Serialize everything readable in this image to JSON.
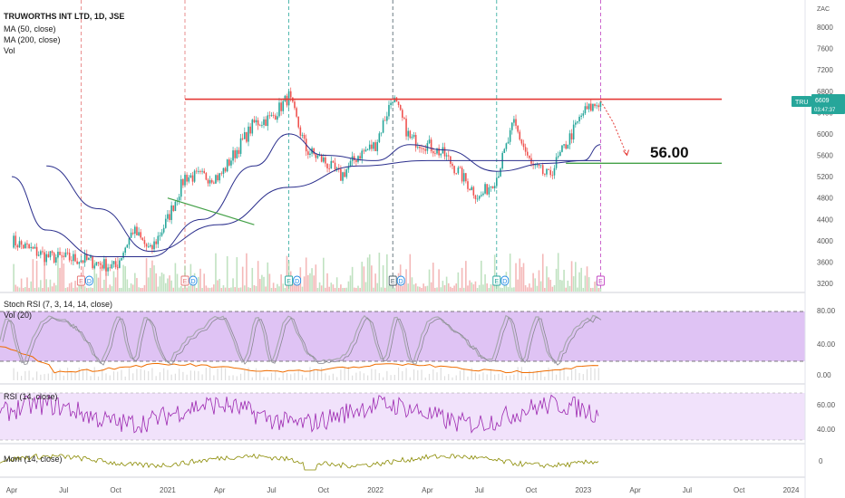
{
  "legend": {
    "symbol": "TRUWORTHS INT LTD, 1D, JSE",
    "ma50": "MA (50, close)",
    "ma200": "MA (200, close)",
    "vol": "Vol",
    "stoch": "Stoch RSI (7, 3, 14, 14, close)",
    "vol20": "Vol (20)",
    "rsi": "RSI (14, close)",
    "mom": "Mom (14, close)"
  },
  "badge": {
    "ticker": "TRU",
    "price": "6609",
    "countdown": "03:47:37"
  },
  "annotation": {
    "target": "56.00"
  },
  "colors": {
    "candle_up": "#26a69a",
    "candle_down": "#ef5350",
    "ma": "#2a2e8c",
    "resistance": "#e53935",
    "support": "#43a047",
    "stoch": "#a8a8b0",
    "stoch_band": "#d9b8f2",
    "rsi": "#9c27b0",
    "rsi_band": "#f1e2fb",
    "mom": "#8a8a00",
    "vol20": "#ef6c00",
    "badge": "#26a69a"
  },
  "events": [
    "E",
    "D"
  ],
  "chart_data": {
    "type": "candlestick",
    "symbol": "TRUWORTHS INT LTD",
    "interval": "1D",
    "exchange": "JSE",
    "currency": "ZAC",
    "x_tick_labels": [
      "Apr",
      "Jul",
      "Oct",
      "2021",
      "Apr",
      "Jul",
      "Oct",
      "2022",
      "Apr",
      "Jul",
      "Oct",
      "2023",
      "Apr",
      "Jul",
      "Oct",
      "2024"
    ],
    "price_axis": {
      "labels": [
        3200,
        3600,
        4000,
        4400,
        4800,
        5200,
        5600,
        6000,
        6400,
        6800,
        7200,
        7600,
        8000
      ],
      "ylim": [
        3100,
        8400
      ]
    },
    "last_price": 6609,
    "price_path": [
      [
        "2020-04",
        4000
      ],
      [
        "2020-06",
        3700
      ],
      [
        "2020-08",
        3650
      ],
      [
        "2020-10",
        3500
      ],
      [
        "2020-11",
        4200
      ],
      [
        "2020-12",
        3800
      ],
      [
        "2021-01",
        4400
      ],
      [
        "2021-02",
        5200
      ],
      [
        "2021-04",
        5200
      ],
      [
        "2021-06",
        6200
      ],
      [
        "2021-07",
        6300
      ],
      [
        "2021-08",
        6700
      ],
      [
        "2021-09",
        5700
      ],
      [
        "2021-10",
        5500
      ],
      [
        "2021-11",
        5200
      ],
      [
        "2021-12",
        5600
      ],
      [
        "2022-01",
        5800
      ],
      [
        "2022-02",
        6700
      ],
      [
        "2022-03",
        5900
      ],
      [
        "2022-04",
        5800
      ],
      [
        "2022-05",
        5600
      ],
      [
        "2022-06",
        5200
      ],
      [
        "2022-07",
        4800
      ],
      [
        "2022-08",
        5200
      ],
      [
        "2022-09",
        6200
      ],
      [
        "2022-10",
        5400
      ],
      [
        "2022-11",
        5200
      ],
      [
        "2022-12",
        5800
      ],
      [
        "2023-01",
        6400
      ],
      [
        "2023-02",
        6609
      ]
    ],
    "ma50_path": [
      [
        "2020-04",
        5200
      ],
      [
        "2020-06",
        4200
      ],
      [
        "2020-09",
        3700
      ],
      [
        "2020-12",
        3700
      ],
      [
        "2021-03",
        4400
      ],
      [
        "2021-06",
        5400
      ],
      [
        "2021-08",
        6000
      ],
      [
        "2021-10",
        5600
      ],
      [
        "2022-01",
        5500
      ],
      [
        "2022-03",
        5800
      ],
      [
        "2022-05",
        5700
      ],
      [
        "2022-08",
        5300
      ],
      [
        "2022-11",
        5450
      ],
      [
        "2023-01",
        5500
      ],
      [
        "2023-02",
        5800
      ]
    ],
    "ma200_path": [
      [
        "2020-06",
        5400
      ],
      [
        "2020-09",
        4600
      ],
      [
        "2020-12",
        3800
      ],
      [
        "2021-04",
        4300
      ],
      [
        "2021-08",
        5000
      ],
      [
        "2021-12",
        5400
      ],
      [
        "2022-04",
        5500
      ],
      [
        "2022-08",
        5500
      ],
      [
        "2022-12",
        5500
      ],
      [
        "2023-02",
        5500
      ]
    ],
    "horizontal_lines": [
      {
        "name": "resistance",
        "price": 6650,
        "from": "2021-02",
        "to": "2023-09"
      },
      {
        "name": "support",
        "price": 5450,
        "from": "2022-12",
        "to": "2023-09"
      }
    ],
    "trendline": {
      "from": [
        "2021-01",
        4800
      ],
      "to": [
        "2021-06",
        4300
      ]
    },
    "target_arrow": {
      "from": [
        "2023-02",
        6620
      ],
      "to": [
        "2023-03",
        5600
      ],
      "label": "56.00"
    },
    "event_markers": [
      {
        "date": "2020-08",
        "labels": [
          "E",
          "D"
        ]
      },
      {
        "date": "2021-02",
        "labels": [
          "E",
          "D"
        ]
      },
      {
        "date": "2021-08",
        "labels": [
          "E",
          "D"
        ]
      },
      {
        "date": "2022-02",
        "labels": [
          "E",
          "D"
        ]
      },
      {
        "date": "2022-08",
        "labels": [
          "E",
          "D"
        ]
      },
      {
        "date": "2023-02",
        "labels": [
          "E"
        ]
      }
    ],
    "stoch_rsi": {
      "axis_labels": [
        0,
        40,
        80
      ],
      "bands": [
        20,
        80
      ]
    },
    "rsi": {
      "axis_labels": [
        40,
        60
      ],
      "bands": [
        30,
        70
      ]
    },
    "mom": {
      "axis_labels": [
        0
      ]
    }
  }
}
